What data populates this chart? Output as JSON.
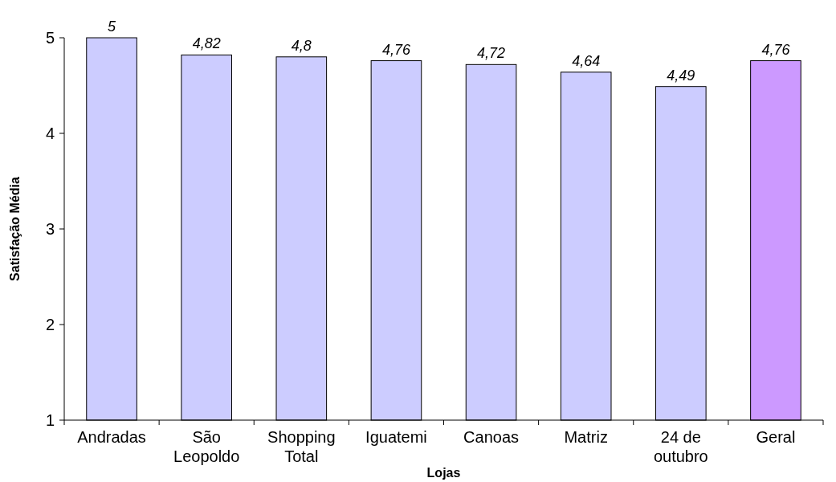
{
  "chart_data": {
    "type": "bar",
    "xlabel": "Lojas",
    "ylabel": "Satisfação Média",
    "categories": [
      "Andradas",
      "São Leopoldo",
      "Shopping Total",
      "Iguatemi",
      "Canoas",
      "Matriz",
      "24 de outubro",
      "Geral"
    ],
    "values": [
      5,
      4.82,
      4.8,
      4.76,
      4.72,
      4.64,
      4.49,
      4.76
    ],
    "colors": [
      "#ccccff",
      "#ccccff",
      "#ccccff",
      "#ccccff",
      "#ccccff",
      "#ccccff",
      "#ccccff",
      "#cc99ff"
    ],
    "value_labels": [
      "5",
      "4,82",
      "4,8",
      "4,76",
      "4,72",
      "4,64",
      "4,49",
      "4,76"
    ],
    "ylim": [
      1,
      5
    ],
    "yticks": [
      1,
      2,
      3,
      4,
      5
    ],
    "grid": false,
    "legend": false
  }
}
